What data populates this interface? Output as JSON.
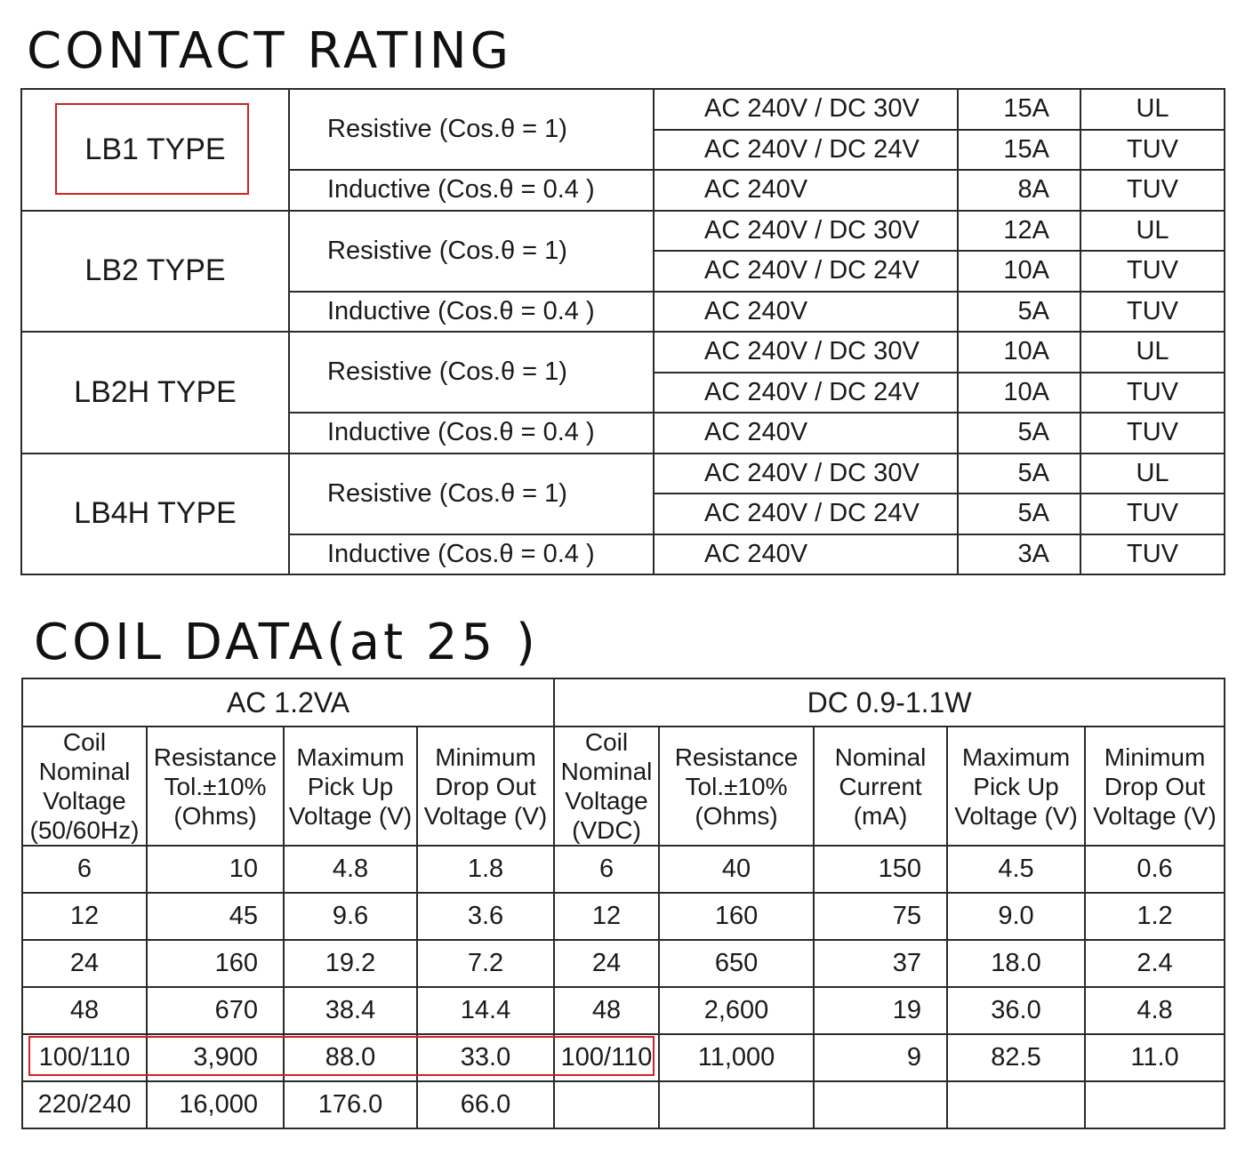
{
  "contact_title": "CONTACT RATING",
  "coil_title": "COIL DATA(at 25 )",
  "contact_rating": [
    {
      "type": "LB1 TYPE",
      "rows": [
        {
          "load": "Resistive (Cos.θ = 1)",
          "voltage": "AC 240V / DC 30V",
          "current": "15A",
          "standard": "UL"
        },
        {
          "load": "",
          "voltage": "AC 240V / DC 24V",
          "current": "15A",
          "standard": "TUV"
        },
        {
          "load": "Inductive (Cos.θ = 0.4 )",
          "voltage": "AC 240V",
          "current": "8A",
          "standard": "TUV"
        }
      ]
    },
    {
      "type": "LB2 TYPE",
      "rows": [
        {
          "load": "Resistive (Cos.θ = 1)",
          "voltage": "AC 240V / DC 30V",
          "current": "12A",
          "standard": "UL"
        },
        {
          "load": "",
          "voltage": "AC 240V / DC 24V",
          "current": "10A",
          "standard": "TUV"
        },
        {
          "load": "Inductive (Cos.θ = 0.4 )",
          "voltage": "AC 240V",
          "current": "5A",
          "standard": "TUV"
        }
      ]
    },
    {
      "type": "LB2H TYPE",
      "rows": [
        {
          "load": "Resistive (Cos.θ = 1)",
          "voltage": "AC 240V / DC 30V",
          "current": "10A",
          "standard": "UL"
        },
        {
          "load": "",
          "voltage": "AC 240V / DC 24V",
          "current": "10A",
          "standard": "TUV"
        },
        {
          "load": "Inductive (Cos.θ = 0.4 )",
          "voltage": "AC 240V",
          "current": "5A",
          "standard": "TUV"
        }
      ]
    },
    {
      "type": "LB4H TYPE",
      "rows": [
        {
          "load": "Resistive (Cos.θ = 1)",
          "voltage": "AC 240V / DC 30V",
          "current": "5A",
          "standard": "UL"
        },
        {
          "load": "",
          "voltage": "AC 240V / DC 24V",
          "current": "5A",
          "standard": "TUV"
        },
        {
          "load": "Inductive (Cos.θ = 0.4 )",
          "voltage": "AC 240V",
          "current": "3A",
          "standard": "TUV"
        }
      ]
    }
  ],
  "coil_data": {
    "ac_group": "AC  1.2VA",
    "dc_group": "DC  0.9-1.1W",
    "headers": [
      [
        "Coil",
        "Nominal",
        "Voltage",
        "(50/60Hz)"
      ],
      [
        "Resistance",
        "Tol.±10%",
        "(Ohms)"
      ],
      [
        "Maximum",
        "Pick Up",
        "Voltage (V)"
      ],
      [
        "Minimum",
        "Drop Out",
        "Voltage (V)"
      ],
      [
        "Coil",
        "Nominal",
        "Voltage",
        "(VDC)"
      ],
      [
        "Resistance",
        "Tol.±10%",
        "(Ohms)"
      ],
      [
        "Nominal",
        "Current",
        "(mA)"
      ],
      [
        "Maximum",
        "Pick Up",
        "Voltage (V)"
      ],
      [
        "Minimum",
        "Drop Out",
        "Voltage (V)"
      ]
    ],
    "rows": [
      [
        "6",
        "10",
        "4.8",
        "1.8",
        "6",
        "40",
        "150",
        "4.5",
        "0.6"
      ],
      [
        "12",
        "45",
        "9.6",
        "3.6",
        "12",
        "160",
        "75",
        "9.0",
        "1.2"
      ],
      [
        "24",
        "160",
        "19.2",
        "7.2",
        "24",
        "650",
        "37",
        "18.0",
        "2.4"
      ],
      [
        "48",
        "670",
        "38.4",
        "14.4",
        "48",
        "2,600",
        "19",
        "36.0",
        "4.8"
      ],
      [
        "100/110",
        "3,900",
        "88.0",
        "33.0",
        "100/110",
        "11,000",
        "9",
        "82.5",
        "11.0"
      ],
      [
        "220/240",
        "16,000",
        "176.0",
        "66.0",
        "",
        "",
        "",
        "",
        ""
      ]
    ]
  },
  "highlight_color": "#d62020"
}
